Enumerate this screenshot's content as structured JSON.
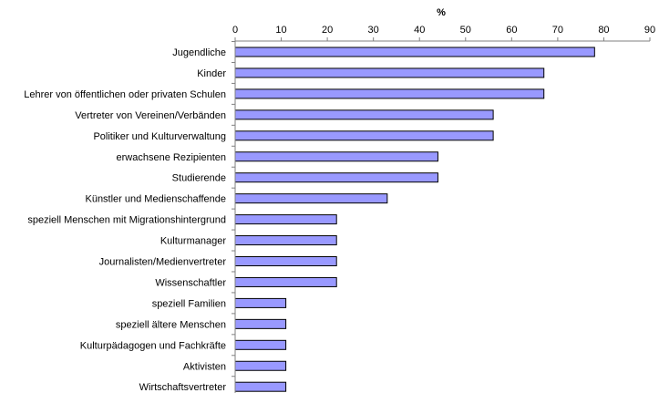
{
  "chart_data": {
    "type": "bar",
    "orientation": "horizontal",
    "xaxis_title": "%",
    "xaxis_position": "top",
    "xlim": [
      0,
      90
    ],
    "xticks": [
      0,
      10,
      20,
      30,
      40,
      50,
      60,
      70,
      80,
      90
    ],
    "categories": [
      "Jugendliche",
      "Kinder",
      "Lehrer von öffentlichen oder privaten Schulen",
      "Vertreter von Vereinen/Verbänden",
      "Politiker und Kulturverwaltung",
      "erwachsene Rezipienten",
      "Studierende",
      "Künstler und Medienschaffende",
      "speziell Menschen mit Migrationshintergrund",
      "Kulturmanager",
      "Journalisten/Medienvertreter",
      "Wissenschaftler",
      "speziell Familien",
      "speziell ältere Menschen",
      "Kulturpädagogen und Fachkräfte",
      "Aktivisten",
      "Wirtschaftsvertreter"
    ],
    "values": [
      78,
      67,
      67,
      56,
      56,
      44,
      44,
      33,
      22,
      22,
      22,
      22,
      11,
      11,
      11,
      11,
      11
    ],
    "bar_color": "#9999ff",
    "bar_border_color": "#000000",
    "grid": false,
    "legend": "none"
  }
}
